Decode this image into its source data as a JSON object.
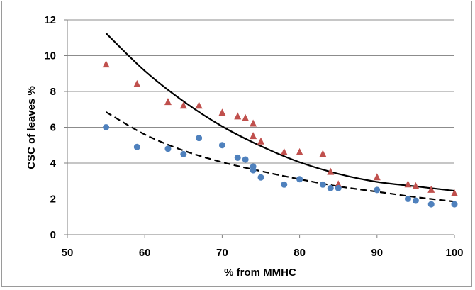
{
  "chart_data": {
    "type": "scatter",
    "title": "",
    "xlabel": "%  from MMHC",
    "ylabel": "CSC of leaves %",
    "xlim": [
      50,
      100
    ],
    "ylim": [
      0,
      12
    ],
    "x_ticks": [
      50,
      60,
      70,
      80,
      90,
      100
    ],
    "y_ticks": [
      0,
      2,
      4,
      6,
      8,
      10,
      12
    ],
    "grid": "horizontal",
    "legend": "none",
    "series": [
      {
        "marker": "triangle",
        "color": "#c0504d",
        "points": [
          [
            55,
            9.5
          ],
          [
            59,
            8.4
          ],
          [
            63,
            7.4
          ],
          [
            65,
            7.2
          ],
          [
            67,
            7.2
          ],
          [
            70,
            6.8
          ],
          [
            72,
            6.6
          ],
          [
            73,
            6.5
          ],
          [
            74,
            6.2
          ],
          [
            74,
            5.5
          ],
          [
            75,
            5.2
          ],
          [
            78,
            4.6
          ],
          [
            80,
            4.6
          ],
          [
            83,
            4.5
          ],
          [
            84,
            3.5
          ],
          [
            85,
            2.8
          ],
          [
            90,
            3.2
          ],
          [
            94,
            2.8
          ],
          [
            95,
            2.7
          ],
          [
            97,
            2.5
          ],
          [
            100,
            2.3
          ]
        ]
      },
      {
        "marker": "circle",
        "color": "#4f81bd",
        "points": [
          [
            55,
            6.0
          ],
          [
            59,
            4.9
          ],
          [
            63,
            4.8
          ],
          [
            65,
            4.5
          ],
          [
            67,
            5.4
          ],
          [
            70,
            5.0
          ],
          [
            72,
            4.3
          ],
          [
            73,
            4.2
          ],
          [
            74,
            3.8
          ],
          [
            74,
            3.6
          ],
          [
            75,
            3.2
          ],
          [
            78,
            2.8
          ],
          [
            80,
            3.1
          ],
          [
            83,
            2.8
          ],
          [
            84,
            2.6
          ],
          [
            85,
            2.6
          ],
          [
            90,
            2.5
          ],
          [
            94,
            2.0
          ],
          [
            95,
            1.9
          ],
          [
            97,
            1.7
          ],
          [
            100,
            1.7
          ]
        ]
      }
    ],
    "trendlines": [
      {
        "style": "solid",
        "color": "#000000",
        "x": [
          55,
          60,
          65,
          70,
          75,
          80,
          85,
          90,
          95,
          100
        ],
        "y": [
          11.25,
          9.15,
          7.45,
          6.05,
          4.95,
          4.05,
          3.4,
          2.95,
          2.7,
          2.45
        ]
      },
      {
        "style": "dashed",
        "color": "#000000",
        "x": [
          55,
          60,
          65,
          70,
          75,
          80,
          85,
          90,
          95,
          100
        ],
        "y": [
          6.85,
          5.6,
          4.7,
          4.05,
          3.55,
          3.1,
          2.7,
          2.4,
          2.1,
          1.85
        ]
      }
    ]
  }
}
